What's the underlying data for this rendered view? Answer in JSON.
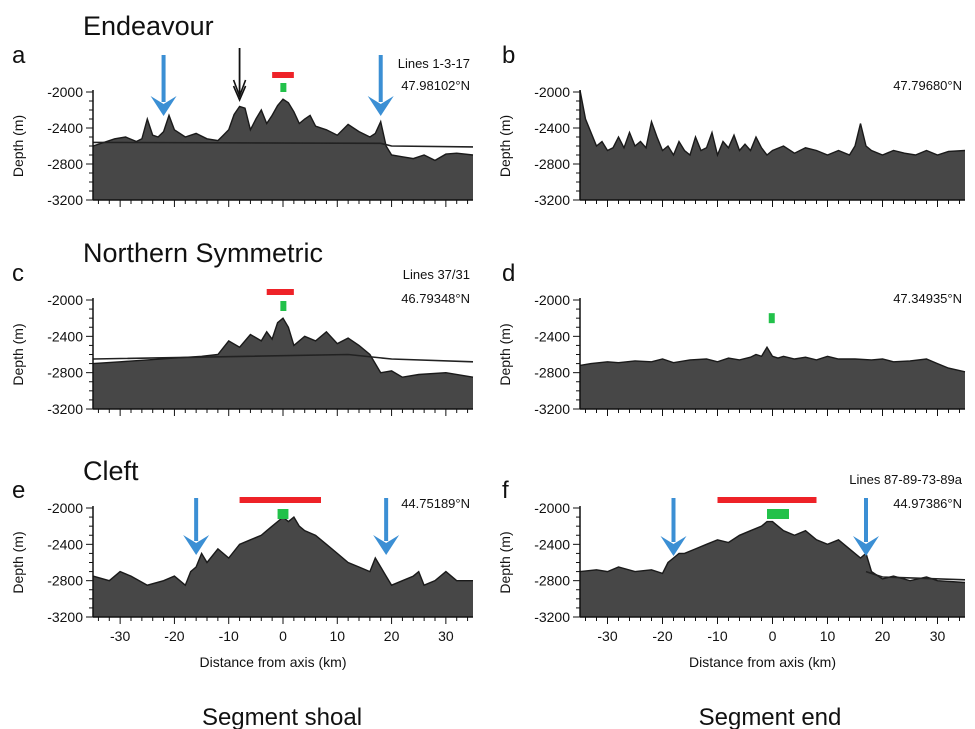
{
  "segment_titles": {
    "a": "Endeavour",
    "c": "Northern Symmetric",
    "e": "Cleft"
  },
  "column_labels": {
    "left": "Segment shoal",
    "right": "Segment end"
  },
  "colors": {
    "profile_fill": "#474747",
    "blue_arrow": "#3b8fd4",
    "red_bar": "#ee2228",
    "green_marker": "#22c14a",
    "black_arrow": "#111111"
  },
  "chart_data": [
    {
      "id": "a",
      "type": "area",
      "letter": "a",
      "ylabel": "Depth (m)",
      "ylim": [
        -3200,
        -2000
      ],
      "xlim": [
        -35,
        35
      ],
      "yticks": [
        -2000,
        -2400,
        -2800,
        -3200
      ],
      "show_x_tick_labels": false,
      "xlabel": "",
      "annotations": [
        "Lines 1-3-17",
        "47.98102°N"
      ],
      "blue_arrows_x_km": [
        -22,
        18
      ],
      "black_double_arrow_x_km": -8,
      "red_bar_km": [
        -2,
        2
      ],
      "green_marker_km": [
        -0.3,
        0.3
      ],
      "x": [
        -35,
        -33,
        -31,
        -29,
        -27,
        -26,
        -25,
        -24,
        -23,
        -22,
        -21,
        -20,
        -18,
        -16,
        -14,
        -12,
        -11,
        -10,
        -9,
        -8,
        -7,
        -6,
        -5,
        -4,
        -3,
        -2,
        -1,
        0,
        1,
        2,
        3,
        4,
        5,
        6,
        8,
        10,
        12,
        14,
        16,
        17,
        18,
        19,
        20,
        22,
        24,
        26,
        28,
        30,
        32,
        35
      ],
      "y": [
        -2600,
        -2560,
        -2520,
        -2500,
        -2550,
        -2520,
        -2300,
        -2480,
        -2500,
        -2440,
        -2260,
        -2420,
        -2500,
        -2460,
        -2520,
        -2540,
        -2480,
        -2420,
        -2250,
        -2160,
        -2180,
        -2420,
        -2300,
        -2200,
        -2350,
        -2260,
        -2150,
        -2080,
        -2120,
        -2220,
        -2350,
        -2300,
        -2260,
        -2380,
        -2420,
        -2480,
        -2360,
        -2440,
        -2500,
        -2460,
        -2330,
        -2600,
        -2700,
        -2720,
        -2740,
        -2700,
        -2760,
        -2690,
        -2680,
        -2700
      ],
      "regional_line": {
        "x": [
          -35,
          18,
          20,
          35
        ],
        "y": [
          -2560,
          -2570,
          -2600,
          -2610
        ]
      }
    },
    {
      "id": "b",
      "type": "area",
      "letter": "b",
      "ylabel": "Depth (m)",
      "ylim": [
        -3200,
        -2000
      ],
      "xlim": [
        -35,
        35
      ],
      "yticks": [
        -2000,
        -2400,
        -2800,
        -3200
      ],
      "show_x_tick_labels": false,
      "xlabel": "",
      "annotations": [
        "47.79680°N"
      ],
      "x": [
        -35,
        -34,
        -33,
        -32,
        -31,
        -30,
        -29,
        -28,
        -27,
        -26,
        -25,
        -24,
        -23,
        -22,
        -21,
        -20,
        -19,
        -18,
        -17,
        -16,
        -15,
        -14,
        -13,
        -12,
        -11,
        -10,
        -9,
        -8,
        -7,
        -6,
        -5,
        -4,
        -3,
        -2,
        -1,
        0,
        2,
        4,
        6,
        8,
        10,
        12,
        14,
        15,
        16,
        17,
        18,
        20,
        22,
        24,
        26,
        28,
        30,
        32,
        35
      ],
      "y": [
        -1980,
        -2300,
        -2450,
        -2600,
        -2550,
        -2650,
        -2620,
        -2500,
        -2620,
        -2450,
        -2600,
        -2550,
        -2620,
        -2330,
        -2500,
        -2650,
        -2600,
        -2700,
        -2550,
        -2650,
        -2700,
        -2500,
        -2650,
        -2620,
        -2450,
        -2700,
        -2550,
        -2620,
        -2480,
        -2650,
        -2580,
        -2650,
        -2500,
        -2620,
        -2700,
        -2650,
        -2600,
        -2680,
        -2620,
        -2650,
        -2700,
        -2650,
        -2700,
        -2600,
        -2350,
        -2600,
        -2650,
        -2700,
        -2650,
        -2680,
        -2700,
        -2650,
        -2700,
        -2660,
        -2650
      ]
    },
    {
      "id": "c",
      "type": "area",
      "letter": "c",
      "ylabel": "Depth (m)",
      "ylim": [
        -3200,
        -2000
      ],
      "xlim": [
        -35,
        35
      ],
      "yticks": [
        -2000,
        -2400,
        -2800,
        -3200
      ],
      "show_x_tick_labels": false,
      "xlabel": "",
      "annotations": [
        "Lines 37/31",
        "46.79348°N"
      ],
      "red_bar_km": [
        -3,
        2
      ],
      "green_marker_km": [
        -0.3,
        0.3
      ],
      "x": [
        -35,
        -30,
        -25,
        -20,
        -15,
        -12,
        -10,
        -8,
        -6,
        -4,
        -3,
        -2,
        -1,
        0,
        1,
        2,
        4,
        6,
        8,
        10,
        12,
        14,
        16,
        18,
        20,
        22,
        25,
        30,
        35
      ],
      "y": [
        -2700,
        -2680,
        -2660,
        -2640,
        -2620,
        -2600,
        -2450,
        -2520,
        -2380,
        -2450,
        -2350,
        -2430,
        -2250,
        -2200,
        -2300,
        -2500,
        -2400,
        -2450,
        -2350,
        -2480,
        -2420,
        -2500,
        -2600,
        -2800,
        -2780,
        -2850,
        -2820,
        -2800,
        -2850
      ],
      "regional_line": {
        "x": [
          -35,
          12,
          20,
          35
        ],
        "y": [
          -2650,
          -2600,
          -2650,
          -2680
        ]
      }
    },
    {
      "id": "d",
      "type": "area",
      "letter": "d",
      "ylabel": "Depth (m)",
      "ylim": [
        -3200,
        -2000
      ],
      "xlim": [
        -35,
        35
      ],
      "yticks": [
        -2000,
        -2400,
        -2800,
        -3200
      ],
      "show_x_tick_labels": false,
      "xlabel": "",
      "annotations": [
        "47.34935°N"
      ],
      "green_marker_km": [
        -0.5,
        0.5
      ],
      "green_marker_depth": -2200,
      "x": [
        -35,
        -33,
        -30,
        -28,
        -25,
        -22,
        -20,
        -18,
        -15,
        -12,
        -10,
        -8,
        -6,
        -4,
        -3,
        -2,
        -1,
        0,
        1,
        2,
        4,
        6,
        8,
        10,
        12,
        15,
        18,
        20,
        22,
        25,
        28,
        30,
        32,
        35
      ],
      "y": [
        -2720,
        -2700,
        -2680,
        -2690,
        -2670,
        -2680,
        -2650,
        -2690,
        -2660,
        -2650,
        -2680,
        -2640,
        -2660,
        -2630,
        -2600,
        -2620,
        -2520,
        -2620,
        -2640,
        -2620,
        -2650,
        -2630,
        -2660,
        -2620,
        -2650,
        -2650,
        -2660,
        -2650,
        -2680,
        -2670,
        -2650,
        -2700,
        -2750,
        -2790
      ]
    },
    {
      "id": "e",
      "type": "area",
      "letter": "e",
      "ylabel": "Depth (m)",
      "ylim": [
        -3200,
        -2000
      ],
      "xlim": [
        -35,
        35
      ],
      "yticks": [
        -2000,
        -2400,
        -2800,
        -3200
      ],
      "xticks": [
        -30,
        -20,
        -10,
        0,
        10,
        20,
        30
      ],
      "xlabel": "Distance from axis (km)",
      "annotations": [
        "44.75189°N"
      ],
      "blue_arrows_x_km": [
        -16,
        19
      ],
      "red_bar_km": [
        -8,
        7
      ],
      "green_marker_km": [
        -1,
        1
      ],
      "x": [
        -35,
        -32,
        -30,
        -28,
        -25,
        -22,
        -20,
        -18,
        -17,
        -16,
        -15,
        -14,
        -12,
        -10,
        -8,
        -6,
        -4,
        -3,
        -2,
        -1,
        0,
        1,
        2,
        3,
        4,
        6,
        8,
        10,
        12,
        14,
        16,
        17,
        18,
        19,
        20,
        22,
        24,
        25,
        26,
        28,
        30,
        32,
        35
      ],
      "y": [
        -2750,
        -2800,
        -2700,
        -2750,
        -2850,
        -2800,
        -2750,
        -2850,
        -2700,
        -2650,
        -2500,
        -2600,
        -2450,
        -2550,
        -2400,
        -2350,
        -2300,
        -2250,
        -2200,
        -2150,
        -2100,
        -2150,
        -2100,
        -2200,
        -2250,
        -2300,
        -2400,
        -2500,
        -2600,
        -2650,
        -2700,
        -2550,
        -2650,
        -2750,
        -2850,
        -2800,
        -2750,
        -2700,
        -2850,
        -2800,
        -2700,
        -2800,
        -2800
      ]
    },
    {
      "id": "f",
      "type": "area",
      "letter": "f",
      "ylabel": "Depth (m)",
      "ylim": [
        -3200,
        -2000
      ],
      "xlim": [
        -35,
        35
      ],
      "yticks": [
        -2000,
        -2400,
        -2800,
        -3200
      ],
      "xticks": [
        -30,
        -20,
        -10,
        0,
        10,
        20,
        30
      ],
      "xlabel": "Distance from axis (km)",
      "annotations": [
        "Lines 87-89-73-89a",
        "44.97386°N"
      ],
      "blue_arrows_x_km": [
        -18,
        17
      ],
      "red_bar_km": [
        -10,
        8
      ],
      "green_marker_km": [
        -1,
        3
      ],
      "x": [
        -35,
        -32,
        -30,
        -28,
        -25,
        -22,
        -20,
        -19,
        -18,
        -17,
        -16,
        -14,
        -12,
        -10,
        -8,
        -6,
        -4,
        -2,
        -1,
        0,
        1,
        2,
        4,
        6,
        8,
        10,
        12,
        14,
        16,
        17,
        18,
        20,
        22,
        25,
        28,
        30,
        35
      ],
      "y": [
        -2700,
        -2680,
        -2700,
        -2650,
        -2700,
        -2680,
        -2720,
        -2600,
        -2550,
        -2500,
        -2500,
        -2450,
        -2400,
        -2350,
        -2380,
        -2300,
        -2250,
        -2200,
        -2150,
        -2150,
        -2200,
        -2250,
        -2300,
        -2250,
        -2350,
        -2400,
        -2350,
        -2450,
        -2550,
        -2500,
        -2700,
        -2780,
        -2750,
        -2800,
        -2760,
        -2800,
        -2820
      ],
      "regional_line": {
        "x": [
          17,
          20,
          35
        ],
        "y": [
          -2700,
          -2760,
          -2790
        ]
      }
    }
  ]
}
